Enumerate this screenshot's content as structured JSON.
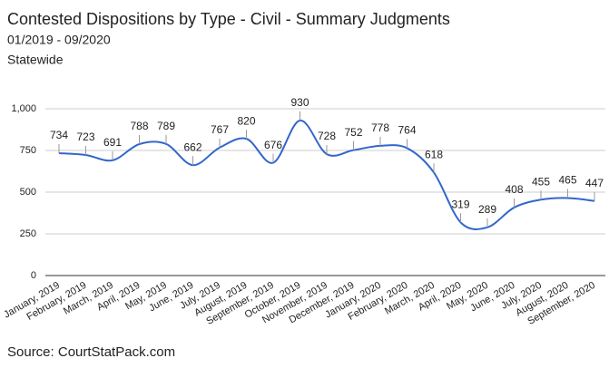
{
  "chart_data": {
    "type": "line",
    "title": "Contested Dispositions by Type - Civil - Summary Judgments",
    "subtitles": [
      "01/2019 - 09/2020",
      "Statewide"
    ],
    "source": "Source: CourtStatPack.com",
    "categories": [
      "January, 2019",
      "February, 2019",
      "March, 2019",
      "April, 2019",
      "May, 2019",
      "June, 2019",
      "July, 2019",
      "August, 2019",
      "September, 2019",
      "October, 2019",
      "November, 2019",
      "December, 2019",
      "January, 2020",
      "February, 2020",
      "March, 2020",
      "April, 2020",
      "May, 2020",
      "June, 2020",
      "July, 2020",
      "August, 2020",
      "September, 2020"
    ],
    "values": [
      734,
      723,
      691,
      788,
      789,
      662,
      767,
      820,
      676,
      930,
      728,
      752,
      778,
      764,
      618,
      319,
      289,
      408,
      455,
      465,
      447
    ],
    "color": "#3366cc",
    "ylim": [
      0,
      1000
    ],
    "yticks": [
      0,
      250,
      500,
      750,
      {
        "value": 1000,
        "label": "1,000"
      }
    ],
    "grid": true
  }
}
